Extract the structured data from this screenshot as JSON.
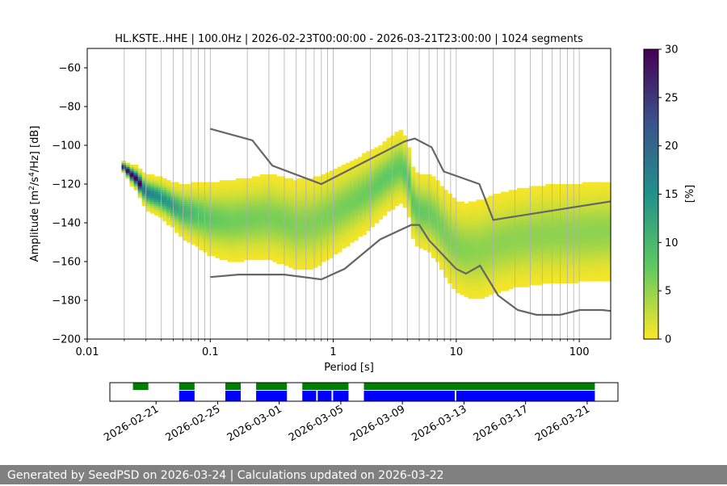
{
  "chart_data": {
    "type": "heatmap",
    "title": "HL.KSTE..HHE | 100.0Hz | 2026-02-23T00:00:00 - 2026-03-21T23:00:00 | 1024 segments",
    "xlabel": "Period [s]",
    "ylabel_parts": {
      "pre": "Amplitude [m",
      "sup1": "2",
      "mid": "/s",
      "sup2": "4",
      "post": "/Hz] [dB]"
    },
    "xscale": "log",
    "xlim": [
      0.01,
      180
    ],
    "ylim": [
      -200,
      -50
    ],
    "x_ticks": [
      0.01,
      0.1,
      1,
      10,
      100
    ],
    "x_tick_labels": [
      "0.01",
      "0.1",
      "1",
      "10",
      "100"
    ],
    "y_ticks": [
      -200,
      -180,
      -160,
      -140,
      -120,
      -100,
      -80,
      -60
    ],
    "y_tick_labels": [
      "−200",
      "−180",
      "−160",
      "−140",
      "−120",
      "−100",
      "−80",
      "−60"
    ],
    "grid": "vertical lines at log minor ticks",
    "colorbar": {
      "label": "[%]",
      "range": [
        0,
        30
      ],
      "ticks": [
        0,
        5,
        10,
        15,
        20,
        25,
        30
      ],
      "tick_labels": [
        "0",
        "5",
        "10",
        "15",
        "20",
        "25",
        "30"
      ],
      "colormap": "viridis (reversed)",
      "colors": [
        "#fde725",
        "#5ec962",
        "#21918c",
        "#3b528b",
        "#440154"
      ]
    },
    "mode_curve": {
      "name": "",
      "x": [
        0.02,
        0.022,
        0.025,
        0.03,
        0.04,
        0.05,
        0.06,
        0.08,
        0.1,
        0.15,
        0.2,
        0.3,
        0.4,
        0.5,
        0.7,
        1.0,
        1.5,
        2,
        2.5,
        3,
        3.5,
        4,
        4.5,
        5,
        6,
        7,
        8,
        10,
        12,
        15,
        20,
        30,
        50,
        100,
        180
      ],
      "y": [
        -111,
        -114,
        -117,
        -124,
        -127,
        -131,
        -134,
        -136,
        -138,
        -139,
        -138,
        -137,
        -139,
        -141,
        -140,
        -135,
        -128,
        -123,
        -118,
        -114,
        -111,
        -115,
        -131,
        -134,
        -135,
        -139,
        -145,
        -152,
        -154,
        -154,
        -151,
        -148,
        -146,
        -145,
        -144
      ],
      "spread": [
        2,
        3,
        4,
        6,
        7,
        8,
        10,
        12,
        14,
        16,
        16,
        17,
        17,
        18,
        18,
        17,
        16,
        15,
        14,
        14,
        14,
        13,
        14,
        14,
        15,
        16,
        17,
        18,
        19,
        20,
        20,
        20,
        20,
        20,
        20
      ]
    },
    "nhnm": {
      "x": [
        0.1,
        0.22,
        0.32,
        0.8,
        3.8,
        4.6,
        6.3,
        7.9,
        15.4,
        20,
        354
      ],
      "y": [
        -91.5,
        -97.4,
        -110.5,
        -120,
        -98,
        -96.5,
        -101,
        -113.5,
        -120,
        -138.5,
        -126
      ]
    },
    "nlnm": {
      "x": [
        0.1,
        0.17,
        0.4,
        0.8,
        1.24,
        2.4,
        4.3,
        5,
        6,
        10,
        12,
        15.6,
        21.9,
        31.6,
        45,
        70,
        101,
        154,
        180
      ],
      "y": [
        -168,
        -166.7,
        -166.7,
        -169.2,
        -163.7,
        -148.6,
        -141.1,
        -141.1,
        -149,
        -163.8,
        -166.2,
        -162.1,
        -177.5,
        -185,
        -187.5,
        -187.5,
        -185,
        -185,
        -185.5
      ]
    },
    "availability": {
      "x_tick_labels": [
        "2026-02-21",
        "2026-02-25",
        "2026-03-01",
        "2026-03-05",
        "2026-03-09",
        "2026-03-13",
        "2026-03-17",
        "2026-03-21"
      ],
      "x_tick_days": [
        3,
        7,
        11,
        15,
        19,
        23,
        27,
        31
      ],
      "range_days": [
        0,
        33
      ],
      "green_spans": [
        [
          1.5,
          2.5
        ],
        [
          4.5,
          5.5
        ],
        [
          7.5,
          8.5
        ],
        [
          9.5,
          11.5
        ],
        [
          12.5,
          15.5
        ],
        [
          16.5,
          31.5
        ]
      ],
      "blue_spans": [
        [
          4.5,
          5.5
        ],
        [
          7.5,
          8.5
        ],
        [
          9.5,
          11.5
        ],
        [
          12.5,
          13.4
        ],
        [
          13.5,
          14.4
        ],
        [
          14.5,
          15.5
        ],
        [
          16.5,
          22.4
        ],
        [
          22.5,
          31.5
        ]
      ],
      "colors": {
        "green": "#008000",
        "blue": "#0000ff"
      }
    }
  },
  "footer": {
    "text": "Generated by SeedPSD on 2026-03-24 | Calculations updated on 2026-03-22"
  }
}
